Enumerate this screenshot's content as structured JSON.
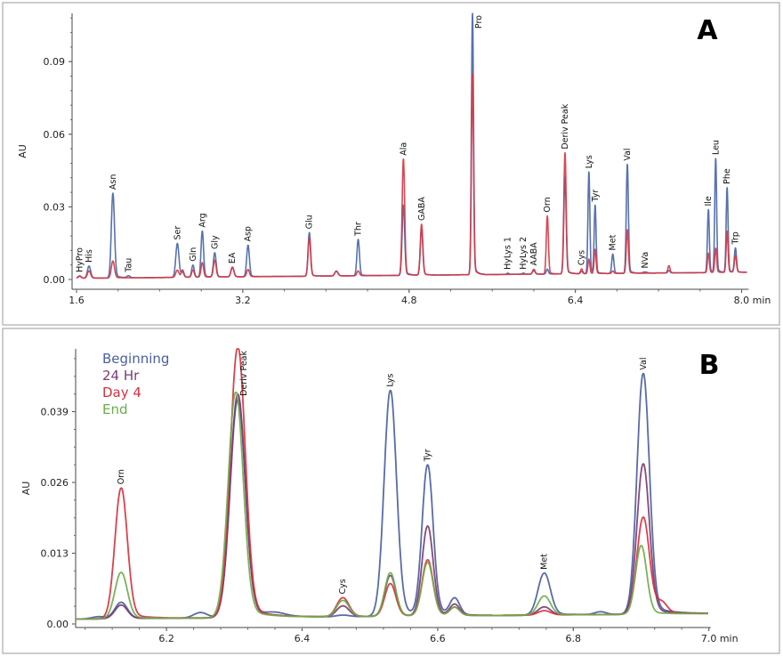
{
  "chart_data": [
    {
      "panel": "A",
      "type": "line",
      "panel_label": "A",
      "ylabel": "AU",
      "x_unit": "min",
      "xlim": [
        1.6,
        8.05
      ],
      "ylim": [
        0,
        0.11
      ],
      "x_ticks": [
        1.6,
        3.2,
        4.8,
        6.4,
        8.0
      ],
      "x_tick_labels": [
        "1.6",
        "3.2",
        "4.8",
        "6.4",
        "8.0 min"
      ],
      "y_ticks": [
        0,
        0.03,
        0.06,
        0.09
      ],
      "y_tick_labels": [
        "0.00",
        "0.03",
        "0.06",
        "0.09"
      ],
      "grid": false,
      "series": [
        {
          "color": "#4a66a8",
          "baseline": [
            0.0005,
            0.003
          ],
          "peaks": [
            [
              1.63,
              0.001,
              0.015
            ],
            [
              1.72,
              0.005,
              0.015
            ],
            [
              1.95,
              0.035,
              0.015
            ],
            [
              2.1,
              0.0008,
              0.015
            ],
            [
              2.57,
              0.014,
              0.015
            ],
            [
              2.62,
              0.002,
              0.012
            ],
            [
              2.72,
              0.005,
              0.012
            ],
            [
              2.81,
              0.019,
              0.012
            ],
            [
              2.93,
              0.01,
              0.013
            ],
            [
              3.1,
              0.004,
              0.014
            ],
            [
              3.25,
              0.013,
              0.013
            ],
            [
              3.84,
              0.018,
              0.012
            ],
            [
              4.1,
              0.002,
              0.015
            ],
            [
              4.31,
              0.015,
              0.012
            ],
            [
              4.745,
              0.029,
              0.012
            ],
            [
              4.92,
              0.019,
              0.012
            ],
            [
              5.41,
              0.108,
              0.01
            ],
            [
              5.75,
              0.0005,
              0.01
            ],
            [
              5.9,
              0.0005,
              0.01
            ],
            [
              6.0,
              0.0015,
              0.012
            ],
            [
              6.13,
              0.002,
              0.01
            ],
            [
              6.3,
              0.04,
              0.011
            ],
            [
              6.46,
              0.001,
              0.01
            ],
            [
              6.53,
              0.042,
              0.009
            ],
            [
              6.59,
              0.028,
              0.009
            ],
            [
              6.76,
              0.008,
              0.01
            ],
            [
              6.9,
              0.045,
              0.01
            ],
            [
              7.07,
              0.0005,
              0.02
            ],
            [
              7.3,
              0.001,
              0.01
            ],
            [
              7.68,
              0.026,
              0.009
            ],
            [
              7.75,
              0.047,
              0.009
            ],
            [
              7.86,
              0.035,
              0.009
            ],
            [
              7.94,
              0.01,
              0.01
            ]
          ]
        },
        {
          "color": "#d43a45",
          "baseline": [
            0.0005,
            0.003
          ],
          "peaks": [
            [
              1.63,
              0.0008,
              0.015
            ],
            [
              1.72,
              0.003,
              0.015
            ],
            [
              1.95,
              0.007,
              0.015
            ],
            [
              2.57,
              0.003,
              0.015
            ],
            [
              2.62,
              0.003,
              0.012
            ],
            [
              2.72,
              0.003,
              0.012
            ],
            [
              2.81,
              0.006,
              0.012
            ],
            [
              2.93,
              0.007,
              0.013
            ],
            [
              3.1,
              0.004,
              0.014
            ],
            [
              3.25,
              0.003,
              0.013
            ],
            [
              3.84,
              0.016,
              0.012
            ],
            [
              4.1,
              0.002,
              0.015
            ],
            [
              4.31,
              0.002,
              0.012
            ],
            [
              4.745,
              0.048,
              0.012
            ],
            [
              4.92,
              0.021,
              0.012
            ],
            [
              5.41,
              0.083,
              0.01
            ],
            [
              6.0,
              0.002,
              0.012
            ],
            [
              6.13,
              0.024,
              0.01
            ],
            [
              6.3,
              0.05,
              0.011
            ],
            [
              6.46,
              0.002,
              0.01
            ],
            [
              6.53,
              0.006,
              0.009
            ],
            [
              6.59,
              0.01,
              0.009
            ],
            [
              6.76,
              0.001,
              0.01
            ],
            [
              6.9,
              0.018,
              0.01
            ],
            [
              7.3,
              0.003,
              0.01
            ],
            [
              7.68,
              0.008,
              0.009
            ],
            [
              7.75,
              0.01,
              0.009
            ],
            [
              7.86,
              0.017,
              0.009
            ],
            [
              7.94,
              0.007,
              0.01
            ]
          ]
        }
      ],
      "peak_labels": [
        {
          "text": "HyPro",
          "rt": 1.63
        },
        {
          "text": "His",
          "rt": 1.72
        },
        {
          "text": "Asn",
          "rt": 1.95
        },
        {
          "text": "Tau",
          "rt": 2.1
        },
        {
          "text": "Ser",
          "rt": 2.57
        },
        {
          "text": "Gln",
          "rt": 2.72
        },
        {
          "text": "Arg",
          "rt": 2.81
        },
        {
          "text": "Gly",
          "rt": 2.93
        },
        {
          "text": "EA",
          "rt": 3.1
        },
        {
          "text": "Asp",
          "rt": 3.25
        },
        {
          "text": "Glu",
          "rt": 3.84
        },
        {
          "text": "Thr",
          "rt": 4.31
        },
        {
          "text": "Ala",
          "rt": 4.745
        },
        {
          "text": "GABA",
          "rt": 4.92
        },
        {
          "text": "Pro",
          "rt": 5.41
        },
        {
          "text": "HyLys 1",
          "rt": 5.75
        },
        {
          "text": "HyLys 2",
          "rt": 5.9
        },
        {
          "text": "AABA",
          "rt": 6.0
        },
        {
          "text": "Orn",
          "rt": 6.13
        },
        {
          "text": "Deriv Peak",
          "rt": 6.3
        },
        {
          "text": "Cys",
          "rt": 6.46
        },
        {
          "text": "Lys",
          "rt": 6.53
        },
        {
          "text": "Tyr",
          "rt": 6.59
        },
        {
          "text": "Met",
          "rt": 6.76
        },
        {
          "text": "Val",
          "rt": 6.9
        },
        {
          "text": "NVa",
          "rt": 7.07
        },
        {
          "text": "Ile",
          "rt": 7.68
        },
        {
          "text": "Leu",
          "rt": 7.75
        },
        {
          "text": "Phe",
          "rt": 7.86
        },
        {
          "text": "Trp",
          "rt": 7.94
        }
      ]
    },
    {
      "panel": "B",
      "type": "line",
      "panel_label": "B",
      "ylabel": "AU",
      "x_unit": "min",
      "xlim": [
        6.066,
        7.0
      ],
      "ylim": [
        0,
        0.0505
      ],
      "x_ticks": [
        6.2,
        6.4,
        6.6,
        6.8,
        7.0
      ],
      "x_tick_labels": [
        "6.2",
        "6.4",
        "6.6",
        "6.8",
        "7.0 min"
      ],
      "y_ticks": [
        0,
        0.013,
        0.026,
        0.039
      ],
      "y_tick_labels": [
        "0.00",
        "0.013",
        "0.026",
        "0.039"
      ],
      "grid": false,
      "legend_position": "top-left",
      "series": [
        {
          "name": "Beginning",
          "color": "#4a5f9e",
          "baseline": [
            0.0009,
            0.0019
          ],
          "peaks": [
            [
              6.1,
              0.0004,
              0.01
            ],
            [
              6.133,
              0.003,
              0.009
            ],
            [
              6.25,
              0.001,
              0.01
            ],
            [
              6.305,
              0.04,
              0.011
            ],
            [
              6.36,
              0.0006,
              0.015
            ],
            [
              6.46,
              0.0003,
              0.01
            ],
            [
              6.53,
              0.0415,
              0.009
            ],
            [
              6.585,
              0.0275,
              0.008
            ],
            [
              6.625,
              0.003,
              0.007
            ],
            [
              6.757,
              0.0077,
              0.009
            ],
            [
              6.84,
              0.0005,
              0.008
            ],
            [
              6.903,
              0.0442,
              0.009
            ]
          ]
        },
        {
          "name": "24 Hr",
          "color": "#7c3a74",
          "baseline": [
            0.0009,
            0.0019
          ],
          "peaks": [
            [
              6.133,
              0.0025,
              0.009
            ],
            [
              6.305,
              0.041,
              0.011
            ],
            [
              6.46,
              0.002,
              0.009
            ],
            [
              6.53,
              0.0075,
              0.008
            ],
            [
              6.585,
              0.0165,
              0.008
            ],
            [
              6.625,
              0.002,
              0.007
            ],
            [
              6.757,
              0.0015,
              0.009
            ],
            [
              6.903,
              0.0276,
              0.009
            ]
          ]
        },
        {
          "name": "Day 4",
          "color": "#d6323e",
          "baseline": [
            0.0009,
            0.0019
          ],
          "peaks": [
            [
              6.133,
              0.024,
              0.009
            ],
            [
              6.305,
              0.0497,
              0.011
            ],
            [
              6.46,
              0.0035,
              0.009
            ],
            [
              6.53,
              0.006,
              0.008
            ],
            [
              6.585,
              0.0103,
              0.008
            ],
            [
              6.625,
              0.0015,
              0.007
            ],
            [
              6.757,
              0.0008,
              0.009
            ],
            [
              6.903,
              0.0178,
              0.009
            ],
            [
              6.93,
              0.002,
              0.008
            ]
          ]
        },
        {
          "name": "End",
          "color": "#6cae4a",
          "baseline": [
            0.0009,
            0.0019
          ],
          "peaks": [
            [
              6.133,
              0.0085,
              0.009
            ],
            [
              6.302,
              0.0414,
              0.011
            ],
            [
              6.46,
              0.003,
              0.009
            ],
            [
              6.53,
              0.008,
              0.008
            ],
            [
              6.585,
              0.0098,
              0.008
            ],
            [
              6.625,
              0.0015,
              0.007
            ],
            [
              6.757,
              0.0035,
              0.009
            ],
            [
              6.9,
              0.0126,
              0.008
            ]
          ]
        }
      ],
      "peak_labels": [
        {
          "text": "Orn",
          "rt": 6.133
        },
        {
          "text": "Deriv Peak",
          "rt": 6.305
        },
        {
          "text": "Cys",
          "rt": 6.46
        },
        {
          "text": "Lys",
          "rt": 6.53
        },
        {
          "text": "Tyr",
          "rt": 6.585
        },
        {
          "text": "Met",
          "rt": 6.757
        },
        {
          "text": "Val",
          "rt": 6.903
        }
      ]
    }
  ]
}
